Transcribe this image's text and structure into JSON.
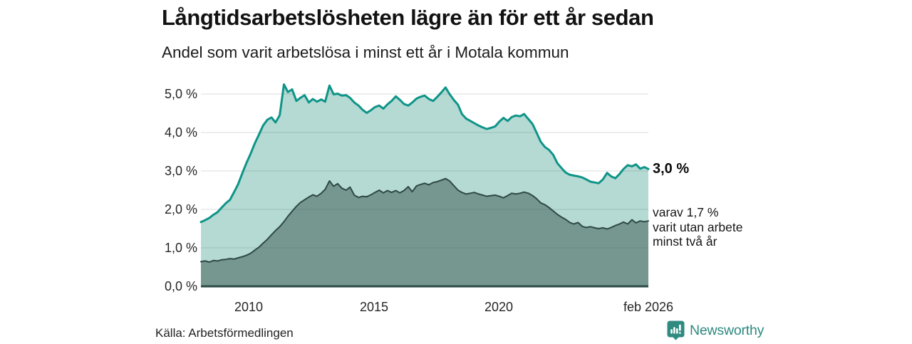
{
  "header": {
    "title": "Långtidsarbetslösheten lägre än för ett år sedan",
    "subtitle": "Andel som varit arbetslösa i minst ett år i Motala kommun"
  },
  "y_axis": {
    "labels": [
      "5,0 %",
      "4,0 %",
      "3,0 %",
      "2,0 %",
      "1,0 %",
      "0,0 %"
    ]
  },
  "x_axis": {
    "labels": [
      "2010",
      "2015",
      "2020",
      "feb 2026"
    ]
  },
  "annotations": {
    "total_label": "3,0 %",
    "sub_line1": "varav 1,7 %",
    "sub_line2": "varit utan arbete",
    "sub_line3": "minst två år"
  },
  "footer": {
    "source": "Källa: Arbetsförmedlingen",
    "brand": "Newsworthy"
  },
  "colors": {
    "line_total": "#0e9488",
    "fill_total": "#b5dad3",
    "line_two_years": "#2e4944",
    "fill_two_years": "#769690",
    "baseline": "#2c4b46",
    "gridline": "rgba(70,95,90,0.16)",
    "brand_teal": "#2f8a80"
  },
  "chart_data": {
    "type": "area",
    "title": "Långtidsarbetslösheten lägre än för ett år sedan",
    "subtitle": "Andel som varit arbetslösa i minst ett år i Motala kommun",
    "unit": "%",
    "ylim": [
      0,
      5.5
    ],
    "yticks": [
      0,
      1,
      2,
      3,
      4,
      5
    ],
    "xtick_labels": [
      "2010",
      "2015",
      "2020",
      "feb 2026"
    ],
    "xtick_years": [
      2010,
      2015,
      2020,
      2026.08
    ],
    "grid": true,
    "legend_position": "right-annotations",
    "last_values": {
      "minst_ett_ar": "3,0 %",
      "minst_tva_ar": "1,7 %"
    },
    "x": [
      2008.08,
      2008.25,
      2008.42,
      2008.58,
      2008.75,
      2008.92,
      2009.08,
      2009.25,
      2009.42,
      2009.58,
      2009.75,
      2009.92,
      2010.08,
      2010.25,
      2010.42,
      2010.58,
      2010.75,
      2010.92,
      2011.08,
      2011.25,
      2011.42,
      2011.58,
      2011.75,
      2011.92,
      2012.08,
      2012.25,
      2012.42,
      2012.58,
      2012.75,
      2012.92,
      2013.08,
      2013.25,
      2013.42,
      2013.58,
      2013.75,
      2013.92,
      2014.08,
      2014.25,
      2014.42,
      2014.58,
      2014.75,
      2014.92,
      2015.08,
      2015.25,
      2015.42,
      2015.58,
      2015.75,
      2015.92,
      2016.08,
      2016.25,
      2016.42,
      2016.58,
      2016.75,
      2016.92,
      2017.08,
      2017.25,
      2017.42,
      2017.58,
      2017.75,
      2017.92,
      2018.08,
      2018.25,
      2018.42,
      2018.58,
      2018.75,
      2018.92,
      2019.08,
      2019.25,
      2019.42,
      2019.58,
      2019.75,
      2019.92,
      2020.08,
      2020.25,
      2020.42,
      2020.58,
      2020.75,
      2020.92,
      2021.08,
      2021.25,
      2021.42,
      2021.58,
      2021.75,
      2021.92,
      2022.08,
      2022.25,
      2022.42,
      2022.58,
      2022.75,
      2022.92,
      2023.08,
      2023.25,
      2023.42,
      2023.58,
      2023.75,
      2023.92,
      2024.08,
      2024.25,
      2024.42,
      2024.58,
      2024.75,
      2024.92,
      2025.08,
      2025.25,
      2025.42,
      2025.58,
      2025.75,
      2025.92,
      2026.08
    ],
    "series": [
      {
        "name": "Arbetslösa minst ett år",
        "values": [
          1.67,
          1.72,
          1.78,
          1.86,
          1.93,
          2.05,
          2.16,
          2.25,
          2.46,
          2.66,
          2.95,
          3.22,
          3.45,
          3.72,
          3.95,
          4.18,
          4.33,
          4.39,
          4.26,
          4.45,
          5.25,
          5.05,
          5.12,
          4.82,
          4.9,
          4.97,
          4.78,
          4.87,
          4.8,
          4.86,
          4.8,
          5.22,
          4.99,
          5.01,
          4.96,
          4.97,
          4.9,
          4.78,
          4.7,
          4.59,
          4.51,
          4.58,
          4.66,
          4.7,
          4.62,
          4.73,
          4.82,
          4.94,
          4.85,
          4.74,
          4.7,
          4.78,
          4.88,
          4.93,
          4.96,
          4.87,
          4.82,
          4.92,
          5.04,
          5.17,
          5.0,
          4.85,
          4.72,
          4.48,
          4.36,
          4.3,
          4.24,
          4.18,
          4.13,
          4.09,
          4.12,
          4.16,
          4.28,
          4.38,
          4.3,
          4.4,
          4.44,
          4.42,
          4.48,
          4.35,
          4.22,
          4.0,
          3.76,
          3.62,
          3.55,
          3.42,
          3.2,
          3.08,
          2.96,
          2.9,
          2.88,
          2.86,
          2.83,
          2.78,
          2.72,
          2.7,
          2.68,
          2.78,
          2.95,
          2.86,
          2.81,
          2.92,
          3.05,
          3.15,
          3.12,
          3.17,
          3.06,
          3.1,
          3.05
        ]
      },
      {
        "name": "Arbetslösa minst två år",
        "values": [
          0.64,
          0.66,
          0.63,
          0.67,
          0.66,
          0.69,
          0.7,
          0.72,
          0.71,
          0.74,
          0.77,
          0.81,
          0.86,
          0.94,
          1.02,
          1.12,
          1.22,
          1.34,
          1.45,
          1.55,
          1.68,
          1.82,
          1.95,
          2.08,
          2.18,
          2.25,
          2.32,
          2.38,
          2.34,
          2.42,
          2.52,
          2.74,
          2.6,
          2.67,
          2.55,
          2.5,
          2.58,
          2.37,
          2.31,
          2.34,
          2.33,
          2.38,
          2.44,
          2.5,
          2.43,
          2.49,
          2.44,
          2.49,
          2.43,
          2.49,
          2.59,
          2.46,
          2.61,
          2.65,
          2.68,
          2.64,
          2.7,
          2.72,
          2.76,
          2.8,
          2.74,
          2.62,
          2.5,
          2.44,
          2.4,
          2.42,
          2.44,
          2.4,
          2.37,
          2.34,
          2.36,
          2.37,
          2.34,
          2.3,
          2.36,
          2.42,
          2.4,
          2.42,
          2.45,
          2.42,
          2.36,
          2.28,
          2.17,
          2.12,
          2.05,
          1.96,
          1.87,
          1.8,
          1.74,
          1.66,
          1.62,
          1.66,
          1.56,
          1.53,
          1.55,
          1.52,
          1.5,
          1.52,
          1.49,
          1.53,
          1.58,
          1.62,
          1.67,
          1.62,
          1.73,
          1.65,
          1.7,
          1.68,
          1.7
        ]
      }
    ]
  }
}
